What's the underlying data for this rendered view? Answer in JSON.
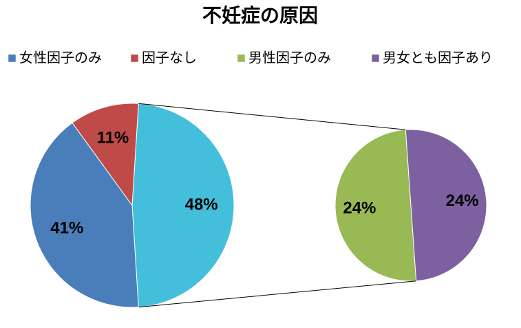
{
  "chart_data": {
    "type": "pie-of-pie",
    "title": "不妊症の原因",
    "categories": [
      "女性因子のみ",
      "因子なし",
      "男性因子のみ",
      "男女とも因子あり"
    ],
    "values": [
      41,
      11,
      24,
      24
    ],
    "value_labels": [
      "41%",
      "11%",
      "24%",
      "24%"
    ],
    "colors": [
      "#4a7ebb",
      "#be4b48",
      "#98b954",
      "#7d60a0"
    ],
    "other_value": 48,
    "other_label": "48%",
    "other_color": "#43bfdb",
    "legend": "top"
  }
}
